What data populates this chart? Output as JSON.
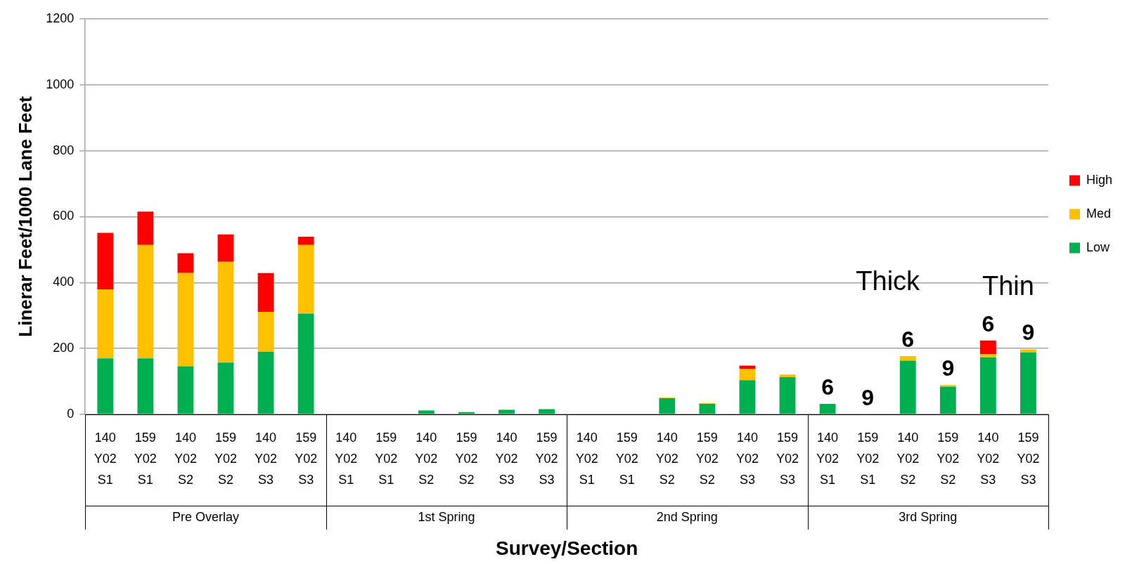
{
  "chart_data": {
    "type": "bar",
    "stacked": true,
    "xlabel": "Survey/Section",
    "ylabel": "Linerar Feet/1000 Lane Feet",
    "categories": [
      "140 Y02 S1",
      "159 Y02 S1",
      "140 Y02 S2",
      "159 Y02 S2",
      "140 Y02 S3",
      "159 Y02 S3",
      "140 Y02 S1",
      "159 Y02 S1",
      "140 Y02 S2",
      "159 Y02 S2",
      "140 Y02 S3",
      "159 Y02 S3",
      "140 Y02 S1",
      "159 Y02 S1",
      "140 Y02 S2",
      "159 Y02 S2",
      "140 Y02 S3",
      "159 Y02 S3",
      "140 Y02 S1",
      "159 Y02 S1",
      "140 Y02 S2",
      "159 Y02 S2",
      "140 Y02 S3",
      "159 Y02 S3"
    ],
    "series": [
      {
        "name": "Low",
        "color": "#00b050",
        "values": [
          170,
          170,
          146,
          157,
          190,
          306,
          0,
          0,
          12,
          7,
          14,
          16,
          0,
          0,
          49,
          32,
          104,
          113,
          32,
          0,
          163,
          84,
          173,
          188
        ]
      },
      {
        "name": "Med",
        "color": "#ffc000",
        "values": [
          209,
          344,
          283,
          306,
          121,
          208,
          0,
          0,
          0,
          0,
          0,
          0,
          0,
          0,
          2,
          2,
          34,
          8,
          0,
          0,
          14,
          5,
          9,
          9
        ]
      },
      {
        "name": "High",
        "color": "#ff0000",
        "values": [
          172,
          101,
          60,
          83,
          118,
          25,
          0,
          0,
          0,
          0,
          0,
          0,
          0,
          0,
          0,
          0,
          10,
          0,
          0,
          0,
          0,
          0,
          42,
          0
        ]
      }
    ],
    "ylim": [
      0,
      1200
    ],
    "yticks": [
      0,
      200,
      400,
      600,
      800,
      1000,
      1200
    ],
    "grid": "y",
    "legend": "right",
    "annotations": [
      "Pre Overlay",
      "1st Spring",
      "2nd Spring",
      "3rd Spring",
      "Thick",
      "Thin",
      "6",
      "9",
      "6",
      "9",
      "6",
      "9"
    ]
  }
}
